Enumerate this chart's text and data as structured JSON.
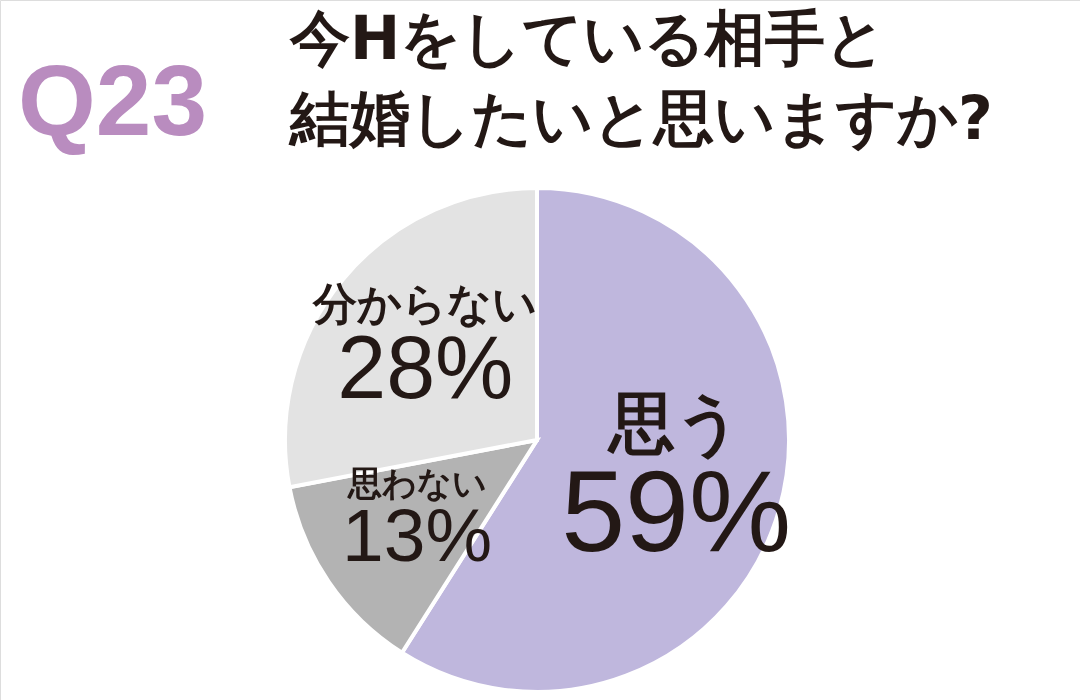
{
  "chart_data": {
    "type": "pie",
    "title": "Q23",
    "subtitle": "今Hをしている相手と結婚したいと思いますか?",
    "categories": [
      "思う",
      "思わない",
      "分からない"
    ],
    "values": [
      59,
      13,
      28
    ],
    "colors": [
      "#bfb7dd",
      "#b3b3b3",
      "#e3e3e3"
    ],
    "value_labels": [
      "59%",
      "13%",
      "28%"
    ]
  }
}
